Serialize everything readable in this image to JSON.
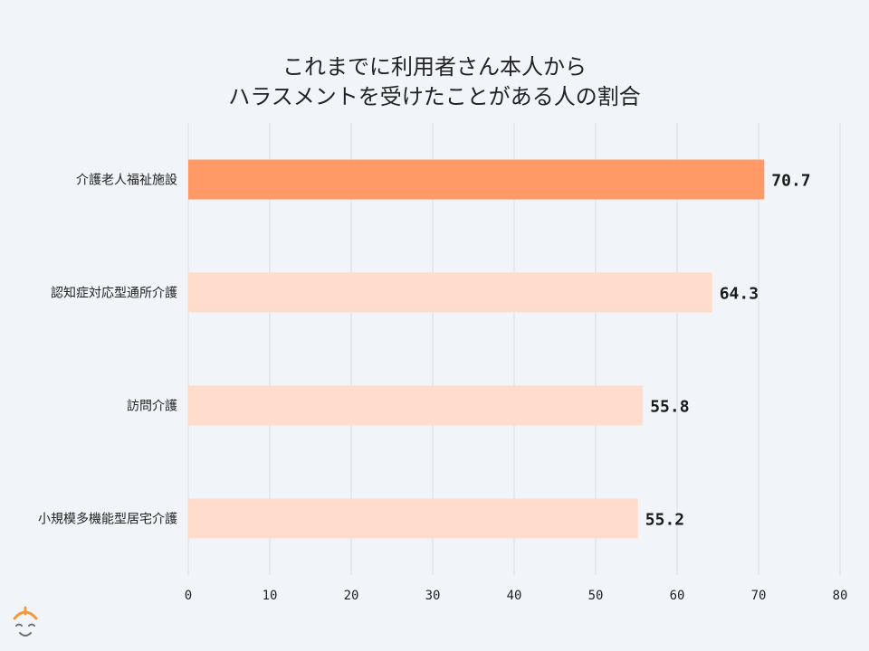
{
  "colors": {
    "background": "#f1f5fa",
    "highlight_bar": "#ff9966",
    "default_bar": "#ffdccb",
    "logo_orange": "#f39a3c",
    "logo_gray": "#707070"
  },
  "logo": {
    "icon": "smiling-face-logo-icon"
  },
  "chart_data": {
    "type": "bar",
    "orientation": "horizontal",
    "title_lines": [
      "これまでに利用者さん本人から",
      "ハラスメントを受けたことがある人の割合"
    ],
    "categories": [
      "介護老人福祉施設",
      "認知症対応型通所介護",
      "訪問介護",
      "小規模多機能型居宅介護"
    ],
    "values": [
      70.7,
      64.3,
      55.8,
      55.2
    ],
    "value_labels": [
      "70.7",
      "64.3",
      "55.8",
      "55.2"
    ],
    "highlight_index": 0,
    "xlim": [
      0,
      80
    ],
    "xticks": [
      0,
      10,
      20,
      30,
      40,
      50,
      60,
      70,
      80
    ],
    "grid": true,
    "xlabel": "",
    "ylabel": ""
  }
}
